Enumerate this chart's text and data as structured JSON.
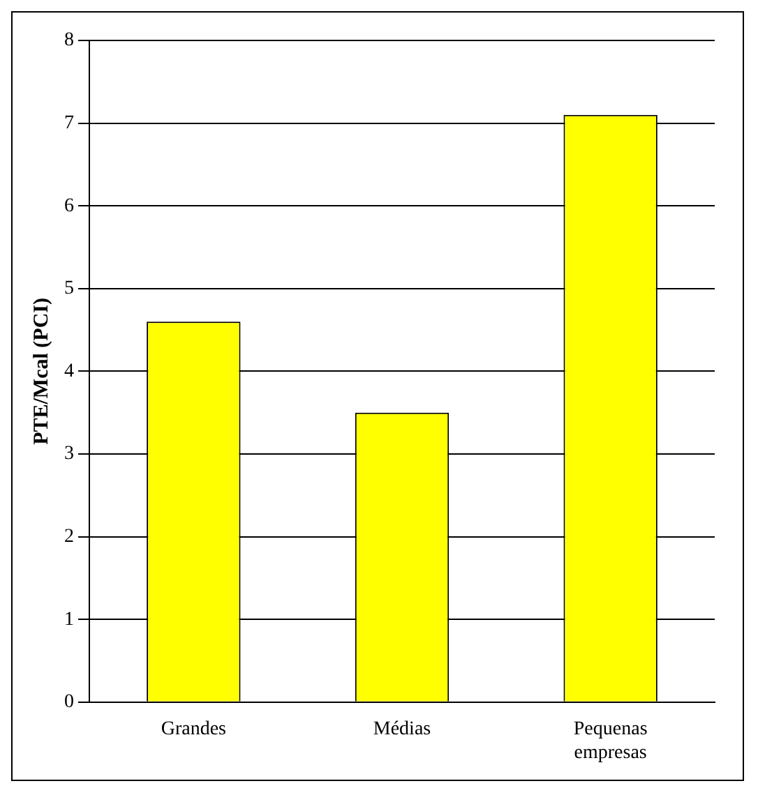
{
  "chart_data": {
    "type": "bar",
    "ylabel": "PTE/Mcal (PCI)",
    "categories": [
      "Grandes",
      "Médias",
      "Pequenas empresas"
    ],
    "values": [
      4.6,
      3.5,
      7.1
    ],
    "color": "#ffff00",
    "ylim": [
      0,
      8
    ],
    "yticks": [
      0,
      1,
      2,
      3,
      4,
      5,
      6,
      7,
      8
    ],
    "grid": "y"
  }
}
